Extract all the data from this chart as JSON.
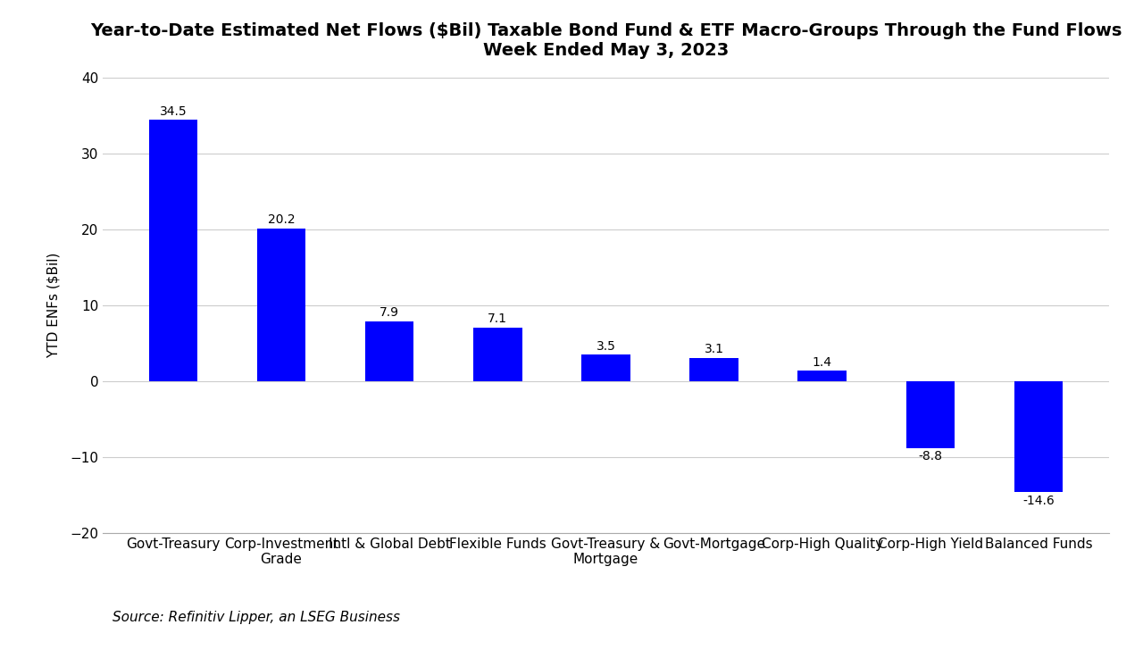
{
  "title_line1": "Year-to-Date Estimated Net Flows ($Bil) Taxable Bond Fund & ETF Macro-Groups Through the Fund Flows",
  "title_line2": "Week Ended May 3, 2023",
  "categories": [
    "Govt-Treasury",
    "Corp-Investment\nGrade",
    "Intl & Global Debt",
    "Flexible Funds",
    "Govt-Treasury &\nMortgage",
    "Govt-Mortgage",
    "Corp-High Quality",
    "Corp-High Yield",
    "Balanced Funds"
  ],
  "values": [
    34.5,
    20.2,
    7.9,
    7.1,
    3.5,
    3.1,
    1.4,
    -8.8,
    -14.6
  ],
  "bar_color": "#0000FF",
  "ylabel": "YTD ENFs ($Bil)",
  "ylim": [
    -20,
    40
  ],
  "yticks": [
    -20,
    -10,
    0,
    10,
    20,
    30,
    40
  ],
  "source_text": "Source: Refinitiv Lipper, an LSEG Business",
  "background_color": "#ffffff",
  "grid_color": "#cccccc",
  "title_fontsize": 14,
  "label_fontsize": 11,
  "tick_fontsize": 11,
  "source_fontsize": 11,
  "bar_label_fontsize": 10,
  "bar_width": 0.45
}
